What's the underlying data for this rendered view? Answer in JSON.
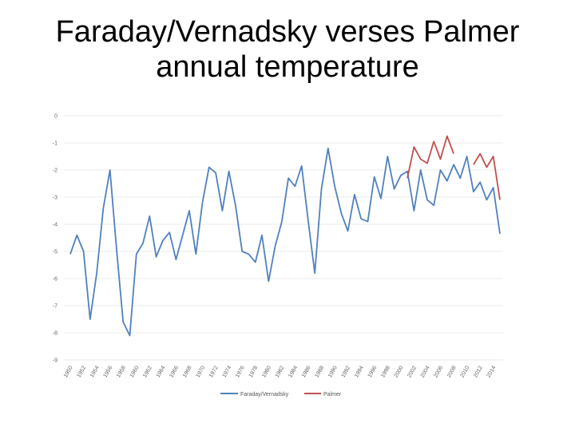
{
  "slide": {
    "title_line1": "Faraday/Vernadsky verses Palmer",
    "title_line2": "annual temperature"
  },
  "colors": {
    "faraday": "#4f81bd",
    "palmer": "#c0504d",
    "grid": "#e4e4e4",
    "axis_text": "#666666"
  },
  "chart_data": {
    "type": "line",
    "title": "",
    "xlabel": "",
    "ylabel": "",
    "ylim": [
      -9,
      0
    ],
    "yticks": [
      0,
      -1,
      -2,
      -3,
      -4,
      -5,
      -6,
      -7,
      -8,
      -9
    ],
    "grid": true,
    "legend_position": "bottom",
    "x_tick_labels": [
      "1950",
      "1952",
      "1954",
      "1956",
      "1958",
      "1960",
      "1962",
      "1964",
      "1966",
      "1968",
      "1970",
      "1972",
      "1974",
      "1976",
      "1978",
      "1980",
      "1982",
      "1984",
      "1986",
      "1988",
      "1990",
      "1992",
      "1994",
      "1996",
      "1998",
      "2000",
      "2002",
      "2004",
      "2006",
      "2008",
      "2010",
      "2012",
      "2014"
    ],
    "series": [
      {
        "name": "Faraday/Vernadsky",
        "x": [
          1950,
          1951,
          1952,
          1953,
          1954,
          1955,
          1956,
          1957,
          1958,
          1959,
          1960,
          1961,
          1962,
          1963,
          1964,
          1965,
          1966,
          1967,
          1968,
          1969,
          1970,
          1971,
          1972,
          1973,
          1974,
          1975,
          1976,
          1977,
          1978,
          1979,
          1980,
          1981,
          1982,
          1983,
          1984,
          1985,
          1986,
          1987,
          1988,
          1989,
          1990,
          1991,
          1992,
          1993,
          1994,
          1995,
          1996,
          1997,
          1998,
          1999,
          2000,
          2001,
          2002,
          2003,
          2004,
          2005,
          2006,
          2007,
          2008,
          2009,
          2010,
          2011,
          2012,
          2013,
          2014,
          2015
        ],
        "values": [
          -5.1,
          -4.4,
          -5.0,
          -7.5,
          -5.8,
          -3.4,
          -2.0,
          -4.9,
          -7.6,
          -8.1,
          -5.1,
          -4.7,
          -3.7,
          -5.2,
          -4.6,
          -4.3,
          -5.3,
          -4.4,
          -3.5,
          -5.1,
          -3.2,
          -1.9,
          -2.1,
          -3.5,
          -2.05,
          -3.3,
          -5.0,
          -5.1,
          -5.4,
          -4.4,
          -6.1,
          -4.8,
          -3.9,
          -2.3,
          -2.6,
          -1.85,
          -3.9,
          -5.8,
          -2.7,
          -1.2,
          -2.6,
          -3.6,
          -4.25,
          -2.9,
          -3.8,
          -3.9,
          -2.25,
          -3.05,
          -1.5,
          -2.7,
          -2.2,
          -2.05,
          -3.5,
          -2.0,
          -3.1,
          -3.3,
          -2.0,
          -2.4,
          -1.8,
          -2.3,
          -1.5,
          -2.8,
          -2.45,
          -3.1,
          -2.65,
          -4.35
        ]
      },
      {
        "name": "Palmer",
        "segments": [
          {
            "x": [
              2001,
              2002,
              2003,
              2004,
              2005,
              2006,
              2007,
              2008,
              2009
            ],
            "values": [
              -2.3,
              -1.15,
              -1.6,
              -1.75,
              -0.95,
              -1.6,
              -0.75,
              -1.4,
              null
            ]
          },
          {
            "x": [
              2011,
              2012,
              2013,
              2014,
              2015
            ],
            "values": [
              -1.8,
              -1.4,
              -1.9,
              -1.5,
              -3.1
            ]
          }
        ]
      }
    ]
  }
}
